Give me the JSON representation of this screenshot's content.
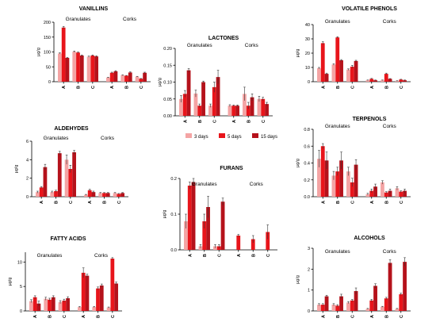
{
  "colors": [
    "#f4a4a4",
    "#e8151b",
    "#b5121b"
  ],
  "legend": [
    "3 days",
    "5 days",
    "15 days"
  ],
  "chart_data": [
    {
      "type": "bar",
      "title": "VANILLINS",
      "ylabel": "µg/g",
      "ylim": [
        0,
        200
      ],
      "yticks": [
        0,
        50,
        100,
        150,
        200
      ],
      "groups": [
        "Granulates",
        "Corks"
      ],
      "categories": [
        "A",
        "B",
        "C",
        "A",
        "B",
        "C"
      ],
      "series": [
        {
          "name": "3 days",
          "values": [
            95,
            101,
            84,
            14,
            22,
            17
          ],
          "err": [
            2,
            2,
            2,
            1,
            1,
            1
          ]
        },
        {
          "name": "5 days",
          "values": [
            182,
            98,
            88,
            30,
            20,
            10
          ],
          "err": [
            4,
            2,
            2,
            2,
            1,
            1
          ]
        },
        {
          "name": "15 days",
          "values": [
            80,
            88,
            85,
            35,
            31,
            30
          ],
          "err": [
            2,
            2,
            2,
            2,
            2,
            2
          ]
        }
      ]
    },
    {
      "type": "bar",
      "title": "LACTONES",
      "ylabel": "µg/g",
      "ylim": [
        0,
        0.2
      ],
      "yticks": [
        "0.00",
        "0.05",
        "0.10",
        "0.15",
        "0.20"
      ],
      "groups": [
        "Granulates",
        "Corks"
      ],
      "categories": [
        "A",
        "B",
        "C",
        "A",
        "B",
        "C"
      ],
      "series": [
        {
          "name": "3 days",
          "values": [
            0.05,
            0.066,
            0.03,
            0.03,
            0.065,
            0.05
          ],
          "err": [
            0.01,
            0.01,
            0.005,
            0.003,
            0.02,
            0.008
          ]
        },
        {
          "name": "5 days",
          "values": [
            0.065,
            0.03,
            0.085,
            0.03,
            0.03,
            0.05
          ],
          "err": [
            0.01,
            0.005,
            0.015,
            0.002,
            0.01,
            0.005
          ]
        },
        {
          "name": "15 days",
          "values": [
            0.135,
            0.1,
            0.115,
            0.03,
            0.055,
            0.035
          ],
          "err": [
            0.005,
            0.003,
            0.02,
            0.002,
            0.01,
            0.005
          ]
        }
      ]
    },
    {
      "type": "bar",
      "title": "VOLATILE PHENOLS",
      "ylabel": "µg/g",
      "ylim": [
        0,
        40
      ],
      "yticks": [
        0,
        10,
        20,
        30,
        40
      ],
      "groups": [
        "Granulates",
        "Corks"
      ],
      "categories": [
        "A",
        "B",
        "C",
        "A",
        "B",
        "C"
      ],
      "series": [
        {
          "name": "3 days",
          "values": [
            9.5,
            12,
            8.5,
            1,
            1,
            0.5
          ],
          "err": [
            0.5,
            0.5,
            0.5,
            0.2,
            0.2,
            0.2
          ]
        },
        {
          "name": "5 days",
          "values": [
            27,
            31,
            10.5,
            2,
            5.5,
            1.5
          ],
          "err": [
            1,
            0.5,
            1,
            0.3,
            0.5,
            0.2
          ]
        },
        {
          "name": "15 days",
          "values": [
            5.5,
            15,
            14.5,
            1,
            2,
            1
          ],
          "err": [
            0.5,
            0.5,
            0.5,
            0.2,
            0.2,
            0.2
          ]
        }
      ]
    },
    {
      "type": "bar",
      "title": "ALDEHYDES",
      "ylabel": "µg/g",
      "ylim": [
        0,
        6
      ],
      "yticks": [
        0,
        2,
        4,
        6
      ],
      "groups": [
        "Granulates",
        "Corks"
      ],
      "categories": [
        "A",
        "B",
        "C",
        "A",
        "B",
        "C"
      ],
      "series": [
        {
          "name": "3 days",
          "values": [
            0.5,
            0.5,
            4,
            0.2,
            0.4,
            0.4
          ],
          "err": [
            0.1,
            0.1,
            0.5,
            0.05,
            0.05,
            0.05
          ]
        },
        {
          "name": "5 days",
          "values": [
            1,
            0.6,
            3,
            0.7,
            0.4,
            0.3
          ],
          "err": [
            0.1,
            0.1,
            0.4,
            0.1,
            0.05,
            0.05
          ]
        },
        {
          "name": "15 days",
          "values": [
            3.2,
            4.7,
            4.8,
            0.5,
            0.4,
            0.4
          ],
          "err": [
            0.3,
            0.2,
            0.2,
            0.1,
            0.05,
            0.05
          ]
        }
      ]
    },
    {
      "type": "bar",
      "title": "TERPENOLS",
      "ylabel": "µg/g",
      "ylim": [
        0,
        0.8
      ],
      "yticks": [
        "0.0",
        "0.2",
        "0.4",
        "0.6",
        "0.8"
      ],
      "groups": [
        "Granulates",
        "Corks"
      ],
      "categories": [
        "A",
        "B",
        "C",
        "A",
        "B",
        "C"
      ],
      "series": [
        {
          "name": "3 days",
          "values": [
            0.45,
            0.25,
            0.3,
            0.03,
            0.17,
            0.1
          ],
          "err": [
            0.1,
            0.05,
            0.05,
            0.01,
            0.02,
            0.02
          ]
        },
        {
          "name": "5 days",
          "values": [
            0.6,
            0.3,
            0.17,
            0.07,
            0.05,
            0.06
          ],
          "err": [
            0.03,
            0.05,
            0.05,
            0.02,
            0.01,
            0.01
          ]
        },
        {
          "name": "15 days",
          "values": [
            0.43,
            0.43,
            0.38,
            0.12,
            0.07,
            0.07
          ],
          "err": [
            0.1,
            0.1,
            0.06,
            0.03,
            0.02,
            0.02
          ]
        }
      ]
    },
    {
      "type": "bar",
      "title": "FURANS",
      "ylabel": "µg/g",
      "ylim": [
        0,
        0.2
      ],
      "yticks": [
        "0.0",
        "0.1",
        "0.2"
      ],
      "groups": [
        "Granulates",
        "Corks"
      ],
      "categories": [
        "A",
        "B",
        "C",
        "A",
        "B",
        "C"
      ],
      "series": [
        {
          "name": "3 days",
          "values": [
            0.08,
            0.01,
            0.01,
            0,
            0,
            0
          ],
          "err": [
            0.02,
            0.005,
            0.005,
            0,
            0,
            0
          ]
        },
        {
          "name": "5 days",
          "values": [
            0.18,
            0.08,
            0.01,
            0.04,
            0.03,
            0.05
          ],
          "err": [
            0.01,
            0.02,
            0.005,
            0.003,
            0.01,
            0.02
          ]
        },
        {
          "name": "15 days",
          "values": [
            0.19,
            0.12,
            0.135,
            0,
            0,
            0
          ],
          "err": [
            0.01,
            0.03,
            0.01,
            0,
            0,
            0
          ]
        }
      ]
    },
    {
      "type": "bar",
      "title": "FATTY ACIDS",
      "ylabel": "µg/g",
      "ylim": [
        0,
        12
      ],
      "yticks": [
        0,
        5,
        10
      ],
      "groups": [
        "Granulates",
        "Corks"
      ],
      "categories": [
        "A",
        "B",
        "C",
        "A",
        "B",
        "C"
      ],
      "series": [
        {
          "name": "3 days",
          "values": [
            2,
            2.5,
            1.8,
            0.8,
            0.8,
            0.7
          ],
          "err": [
            0.3,
            0.3,
            0.3,
            0.1,
            0.1,
            0.1
          ]
        },
        {
          "name": "5 days",
          "values": [
            2.8,
            2.3,
            2.1,
            7.8,
            4.6,
            10.7
          ],
          "err": [
            0.3,
            0.3,
            0.3,
            1,
            0.3,
            0.2
          ]
        },
        {
          "name": "15 days",
          "values": [
            1.5,
            2.8,
            2.6,
            7.2,
            5.2,
            5.6
          ],
          "err": [
            0.5,
            0.3,
            0.3,
            0.3,
            0.3,
            0.3
          ]
        }
      ]
    },
    {
      "type": "bar",
      "title": "ALCOHOLS",
      "ylabel": "µg/g",
      "ylim": [
        0,
        3
      ],
      "yticks": [
        0,
        1,
        2,
        3
      ],
      "groups": [
        "Granulates",
        "Corks"
      ],
      "categories": [
        "A",
        "B",
        "C",
        "A",
        "B",
        "C"
      ],
      "series": [
        {
          "name": "3 days",
          "values": [
            0.3,
            0.3,
            0.4,
            0.1,
            0.2,
            0.1
          ],
          "err": [
            0.05,
            0.05,
            0.05,
            0.02,
            0.02,
            0.02
          ]
        },
        {
          "name": "5 days",
          "values": [
            0.3,
            0.25,
            0.5,
            0.5,
            0.6,
            0.8
          ],
          "err": [
            0.05,
            0.05,
            0.05,
            0.05,
            0.05,
            0.05
          ]
        },
        {
          "name": "15 days",
          "values": [
            0.7,
            0.7,
            0.95,
            1.2,
            2.3,
            2.35
          ],
          "err": [
            0.05,
            0.1,
            0.15,
            0.1,
            0.15,
            0.2
          ]
        }
      ]
    }
  ]
}
